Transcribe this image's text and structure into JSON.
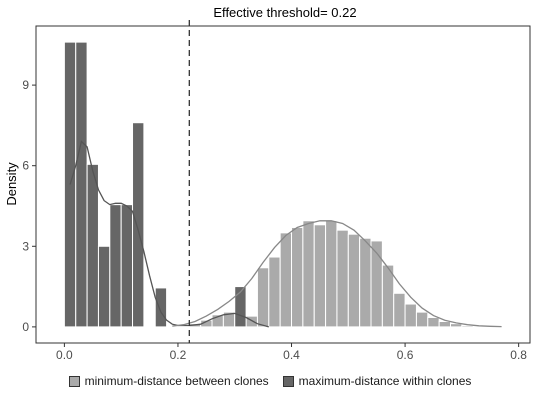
{
  "chart_data": {
    "type": "bar",
    "title": "Effective threshold= 0.22",
    "xlabel": "",
    "ylabel": "Density",
    "xlim": [
      -0.05,
      0.82
    ],
    "ylim": [
      -0.6,
      11.2
    ],
    "x_ticks": [
      0.0,
      0.2,
      0.4,
      0.6,
      0.8
    ],
    "x_tick_labels": [
      "0.0",
      "0.2",
      "0.4",
      "0.6",
      "0.8"
    ],
    "y_ticks": [
      0,
      3,
      6,
      9
    ],
    "y_tick_labels": [
      "0",
      "3",
      "6",
      "9"
    ],
    "bin_width": 0.02,
    "threshold": 0.22,
    "grid": false,
    "legend_position": "bottom",
    "series": [
      {
        "name": "minimum-distance between clones",
        "color": "#aaaaaa",
        "bins_left": [
          0.22,
          0.24,
          0.26,
          0.28,
          0.3,
          0.32,
          0.34,
          0.36,
          0.38,
          0.4,
          0.42,
          0.44,
          0.46,
          0.48,
          0.5,
          0.52,
          0.54,
          0.56,
          0.58,
          0.6,
          0.62,
          0.64,
          0.66,
          0.68,
          0.7
        ],
        "values": [
          0.12,
          0.25,
          0.45,
          0.55,
          0.7,
          0.4,
          2.2,
          2.6,
          3.5,
          3.7,
          3.95,
          3.8,
          3.95,
          3.6,
          3.45,
          3.3,
          3.2,
          2.3,
          1.25,
          0.85,
          0.55,
          0.35,
          0.2,
          0.12,
          0.05
        ]
      },
      {
        "name": "maximum-distance within clones",
        "color": "#666666",
        "bins_left": [
          0.0,
          0.02,
          0.04,
          0.06,
          0.08,
          0.1,
          0.12,
          0.14,
          0.16,
          0.3
        ],
        "values": [
          10.6,
          10.6,
          6.05,
          3.0,
          4.55,
          4.55,
          7.6,
          0.0,
          1.45,
          1.5
        ]
      }
    ],
    "density_curves": [
      {
        "series": "maximum-distance within clones",
        "x": [
          0.01,
          0.02,
          0.03,
          0.04,
          0.05,
          0.06,
          0.07,
          0.08,
          0.09,
          0.1,
          0.11,
          0.12,
          0.13,
          0.14,
          0.15,
          0.16,
          0.17,
          0.18,
          0.19,
          0.2,
          0.22,
          0.24,
          0.26,
          0.28,
          0.3,
          0.32,
          0.34,
          0.36
        ],
        "y": [
          5.3,
          6.0,
          6.9,
          6.7,
          5.8,
          5.1,
          4.7,
          4.55,
          4.6,
          4.6,
          4.5,
          4.3,
          3.6,
          2.8,
          1.9,
          1.1,
          0.55,
          0.25,
          0.1,
          0.05,
          0.05,
          0.1,
          0.3,
          0.45,
          0.5,
          0.35,
          0.12,
          0.0
        ]
      },
      {
        "series": "minimum-distance between clones",
        "x": [
          0.19,
          0.21,
          0.23,
          0.25,
          0.27,
          0.29,
          0.31,
          0.33,
          0.35,
          0.37,
          0.39,
          0.41,
          0.43,
          0.45,
          0.47,
          0.49,
          0.51,
          0.53,
          0.55,
          0.57,
          0.59,
          0.61,
          0.63,
          0.65,
          0.67,
          0.69,
          0.71,
          0.73,
          0.75,
          0.77
        ],
        "y": [
          0.03,
          0.08,
          0.2,
          0.4,
          0.65,
          0.95,
          1.3,
          1.8,
          2.4,
          2.95,
          3.4,
          3.7,
          3.85,
          3.95,
          3.95,
          3.85,
          3.6,
          3.2,
          2.75,
          2.2,
          1.6,
          1.1,
          0.7,
          0.42,
          0.25,
          0.15,
          0.08,
          0.04,
          0.02,
          0.01
        ]
      }
    ]
  }
}
